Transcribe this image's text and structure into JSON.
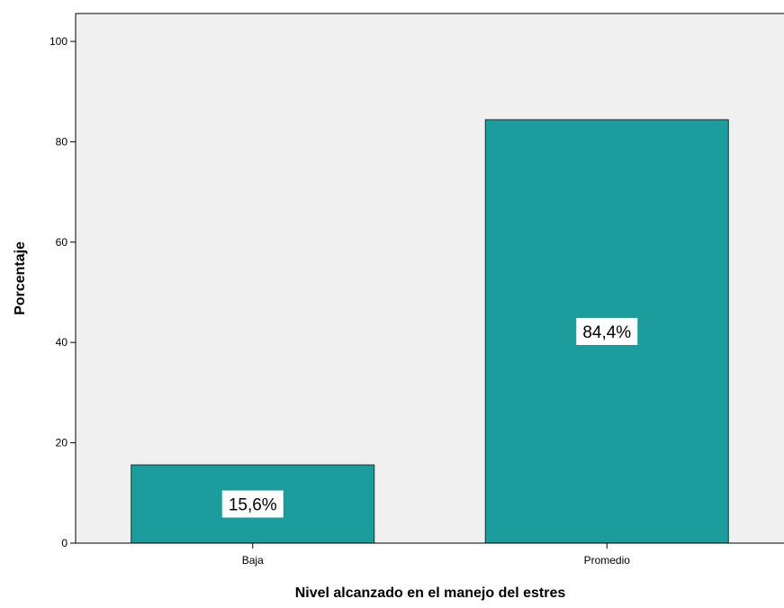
{
  "chart_data": {
    "type": "bar",
    "xlabel": "Nivel alcanzado en el manejo del estres",
    "ylabel": "Porcentaje",
    "categories": [
      "Baja",
      "Promedio"
    ],
    "values": [
      15.6,
      84.4
    ],
    "data_labels": [
      "15,6%",
      "84,4%"
    ],
    "ylim": [
      0,
      105
    ],
    "yticks": [
      0,
      20,
      40,
      60,
      80,
      100
    ],
    "grid": false,
    "colors": {
      "plot_background": "#f0f0f0",
      "bar_fill": "#1c9c9c",
      "bar_stroke": "#2a2a2a",
      "label_background": "#ffffff"
    }
  }
}
